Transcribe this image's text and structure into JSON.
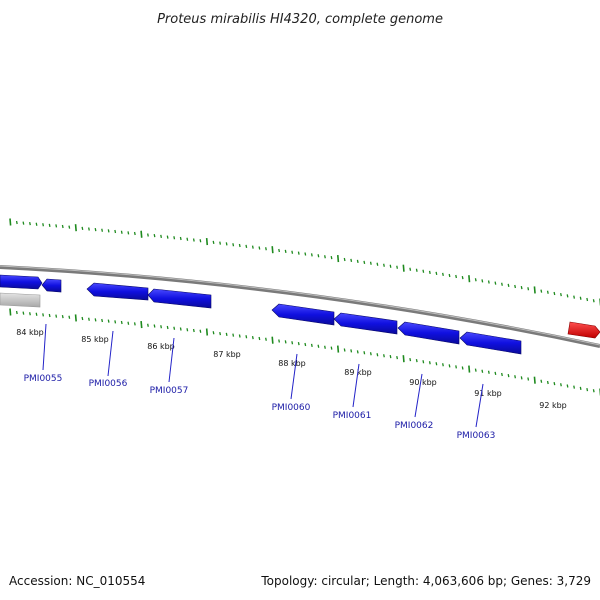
{
  "title": "Proteus mirabilis HI4320, complete genome",
  "footer": {
    "accession": "Accession: NC_010554",
    "summary": "Topology: circular; Length: 4,063,606 bp; Genes: 3,729"
  },
  "colors": {
    "gene_forward": "#1010e0",
    "gene_special": "#e01010",
    "gene_gray": "#c8c8c8",
    "tick": "#1e8a1e",
    "label": "#1a1aa6",
    "backbone": "#808080"
  },
  "kbp_labels": [
    "84 kbp",
    "85 kbp",
    "86 kbp",
    "87 kbp",
    "88 kbp",
    "89 kbp",
    "90 kbp",
    "91 kbp",
    "92 kbp"
  ],
  "gene_labels": [
    "PMI0055",
    "PMI0056",
    "PMI0057",
    "PMI0060",
    "PMI0061",
    "PMI0062",
    "PMI0063"
  ]
}
